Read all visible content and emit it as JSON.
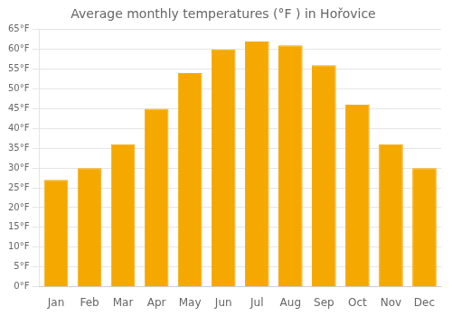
{
  "chart_data": {
    "type": "bar",
    "title": "Average monthly temperatures (°F ) in Hořovice",
    "categories": [
      "Jan",
      "Feb",
      "Mar",
      "Apr",
      "May",
      "Jun",
      "Jul",
      "Aug",
      "Sep",
      "Oct",
      "Nov",
      "Dec"
    ],
    "values": [
      27,
      30,
      36,
      45,
      54,
      60,
      62,
      61,
      56,
      46,
      36,
      30
    ],
    "color": "#F5A800",
    "ylim": [
      0,
      65
    ],
    "yticks": [
      {
        "value": 0,
        "label": "0°F"
      },
      {
        "value": 5,
        "label": "5°F"
      },
      {
        "value": 10,
        "label": "10°F"
      },
      {
        "value": 15,
        "label": "15°F"
      },
      {
        "value": 20,
        "label": "20°F"
      },
      {
        "value": 25,
        "label": "25°F"
      },
      {
        "value": 30,
        "label": "30°F"
      },
      {
        "value": 35,
        "label": "35°F"
      },
      {
        "value": 40,
        "label": "40°F"
      },
      {
        "value": 45,
        "label": "45°F"
      },
      {
        "value": 50,
        "label": "50°F"
      },
      {
        "value": 55,
        "label": "55°F"
      },
      {
        "value": 60,
        "label": "60°F"
      },
      {
        "value": 65,
        "label": "65°F"
      }
    ],
    "grid": true
  }
}
